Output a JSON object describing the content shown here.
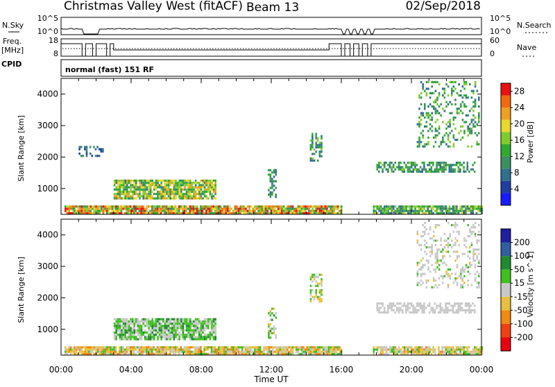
{
  "header": {
    "station": "Christmas Valley West (fitACF)",
    "beam": "Beam 13",
    "date": "02/Sep/2018"
  },
  "panels": {
    "nsky": {
      "label": "N.Sky",
      "ticks": [
        "10^5",
        "10^0"
      ],
      "right_ticks": [
        "10^5",
        "10^0"
      ],
      "right_label": "N.Search"
    },
    "freq": {
      "label_top": "Freq.",
      "label_bottom": "[MHz]",
      "ticks": [
        "18",
        "8"
      ],
      "right_ticks": [
        "60",
        "0"
      ],
      "right_label": "Nave"
    },
    "cpid": {
      "label": "CPID",
      "text": "normal (fast) 151 RF"
    }
  },
  "colors": {
    "power": [
      "#1a1aff",
      "#1f3f9f",
      "#2f6f8f",
      "#3c8f5f",
      "#2faa2f",
      "#7fcc2f",
      "#e8d82f",
      "#f0a020",
      "#f06a10",
      "#e81010"
    ],
    "velocity": [
      "#e80010",
      "#f04010",
      "#f08a10",
      "#e8c040",
      "#c8c8c8",
      "#40c020",
      "#208a30",
      "#2f5f9f",
      "#1f1fa0"
    ]
  },
  "chart_data": [
    {
      "type": "heatmap",
      "title": "",
      "xlabel": "",
      "ylabel": "Slant Range [km]",
      "xlim": [
        "00:00",
        "24:00"
      ],
      "ylim": [
        180,
        4500
      ],
      "x_ticks": [
        "00:00",
        "04:00",
        "08:00",
        "12:00",
        "16:00",
        "20:00",
        "00:00"
      ],
      "y_ticks": [
        1000,
        2000,
        3000,
        4000
      ],
      "colorbar": {
        "label": "Power [dB]",
        "ticks": [
          4,
          8,
          12,
          16,
          20,
          24,
          28
        ],
        "range": [
          0,
          30
        ]
      },
      "regions": [
        {
          "t0": 3.0,
          "t1": 8.8,
          "r0": 650,
          "r1": 1250,
          "density": 0.85,
          "v": [
            8,
            24
          ]
        },
        {
          "t0": 0.2,
          "t1": 16.0,
          "r0": 180,
          "r1": 450,
          "density": 0.9,
          "v": [
            10,
            30
          ]
        },
        {
          "t0": 17.8,
          "t1": 24.0,
          "r0": 180,
          "r1": 420,
          "density": 0.85,
          "v": [
            6,
            20
          ]
        },
        {
          "t0": 11.8,
          "t1": 12.3,
          "r0": 700,
          "r1": 1650,
          "density": 0.5,
          "v": [
            6,
            14
          ]
        },
        {
          "t0": 14.2,
          "t1": 14.9,
          "r0": 1850,
          "r1": 2700,
          "density": 0.5,
          "v": [
            6,
            16
          ]
        },
        {
          "t0": 18.0,
          "t1": 23.6,
          "r0": 1500,
          "r1": 1850,
          "density": 0.6,
          "v": [
            6,
            16
          ]
        },
        {
          "t0": 20.3,
          "t1": 23.9,
          "r0": 2300,
          "r1": 4400,
          "density": 0.25,
          "v": [
            6,
            18
          ]
        },
        {
          "t0": 1.0,
          "t1": 2.5,
          "r0": 2000,
          "r1": 2300,
          "density": 0.3,
          "v": [
            4,
            10
          ]
        }
      ]
    },
    {
      "type": "heatmap",
      "title": "",
      "xlabel": "Time UT",
      "ylabel": "Slant Range [km]",
      "xlim": [
        "00:00",
        "24:00"
      ],
      "ylim": [
        180,
        4500
      ],
      "x_ticks": [
        "00:00",
        "04:00",
        "08:00",
        "12:00",
        "16:00",
        "20:00",
        "00:00"
      ],
      "y_ticks": [
        1000,
        2000,
        3000,
        4000
      ],
      "colorbar": {
        "label": "Velocity [m s^-1]",
        "ticks": [
          200,
          100,
          50,
          15,
          -15,
          -50,
          -100,
          -200
        ]
      },
      "regions": [
        {
          "t0": 3.0,
          "t1": 8.8,
          "r0": 650,
          "r1": 1350,
          "density": 0.85,
          "v": [
            -10,
            60
          ]
        },
        {
          "t0": 0.2,
          "t1": 16.0,
          "r0": 180,
          "r1": 450,
          "density": 0.9,
          "v": [
            -80,
            40
          ]
        },
        {
          "t0": 17.8,
          "t1": 24.0,
          "r0": 180,
          "r1": 420,
          "density": 0.85,
          "v": [
            -60,
            30
          ]
        },
        {
          "t0": 11.8,
          "t1": 12.3,
          "r0": 700,
          "r1": 1650,
          "density": 0.5,
          "v": [
            -30,
            60
          ]
        },
        {
          "t0": 14.2,
          "t1": 14.9,
          "r0": 1850,
          "r1": 2700,
          "density": 0.5,
          "v": [
            -40,
            40
          ]
        },
        {
          "t0": 18.0,
          "t1": 23.6,
          "r0": 1500,
          "r1": 1850,
          "density": 0.6,
          "v": [
            -15,
            15
          ]
        },
        {
          "t0": 20.3,
          "t1": 23.9,
          "r0": 2300,
          "r1": 4400,
          "density": 0.25,
          "v": [
            -20,
            20
          ]
        }
      ]
    }
  ]
}
